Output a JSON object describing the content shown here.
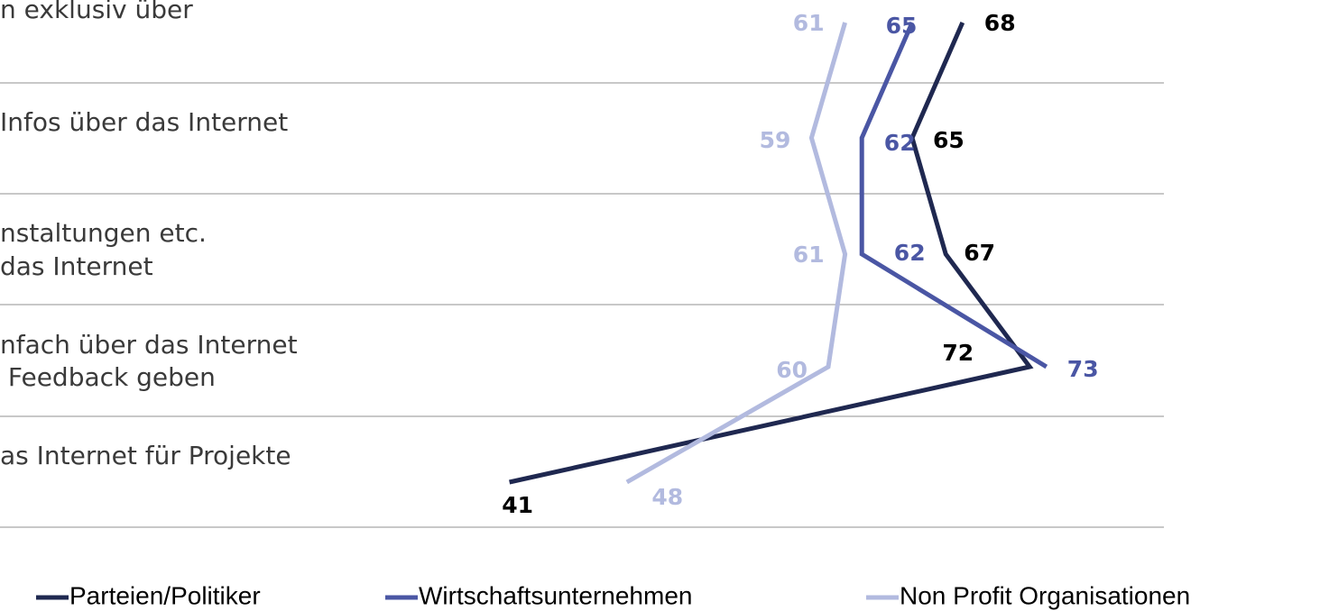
{
  "chart_data": {
    "type": "line",
    "categories": [
      "n exklusiv über",
      "Infos über das Internet",
      "nstaltungen etc.\ndas Internet",
      "nfach über das Internet\n Feedback geben",
      "as Internet für Projekte"
    ],
    "series": [
      {
        "name": "Parteien/Politiker",
        "color": "#1f2850",
        "label_color": "#000000",
        "values": [
          68,
          65,
          67,
          72,
          41
        ]
      },
      {
        "name": "Wirtschaftsunternehmen",
        "color": "#4a56a4",
        "label_color": "#4a56a4",
        "values": [
          65,
          62,
          62,
          73,
          null
        ]
      },
      {
        "name": "Non Profit Organisationen",
        "color": "#b2badf",
        "label_color": "#b2badf",
        "values": [
          61,
          59,
          61,
          60,
          48
        ]
      }
    ],
    "xlim": [
      20,
      80
    ]
  }
}
